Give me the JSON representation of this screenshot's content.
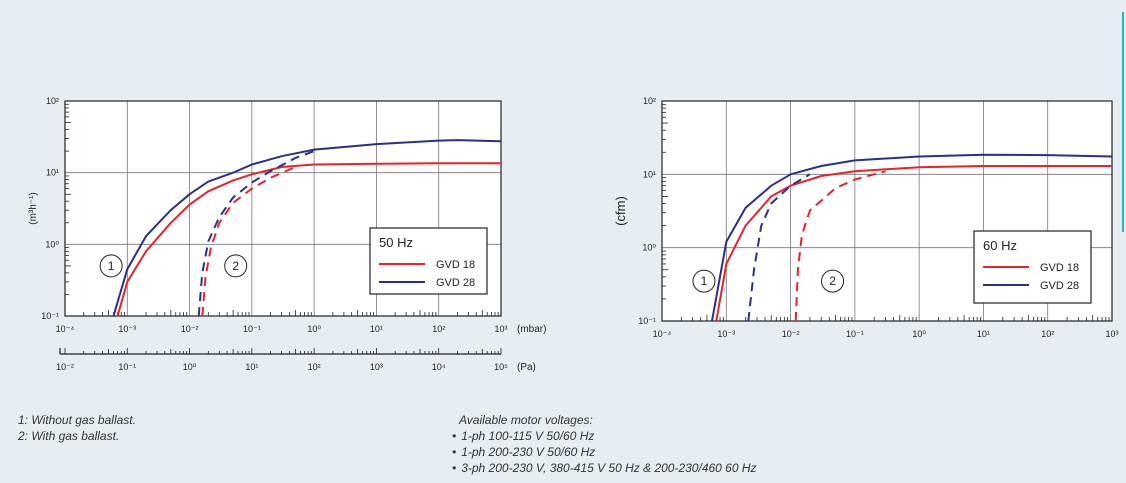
{
  "chart_data": [
    {
      "type": "line",
      "legend_title": "50 Hz",
      "legend_position": "lower-right",
      "ylabel": "(m³h⁻¹)",
      "x_unit": "(mbar)",
      "x2_unit": "(Pa)",
      "x_scale": "log",
      "y_scale": "log",
      "xlim": [
        0.0001,
        1000
      ],
      "ylim": [
        0.1,
        100
      ],
      "grid": true,
      "x_ticks": [
        "10⁻⁴",
        "10⁻³",
        "10⁻²",
        "10⁻¹",
        "10⁰",
        "10¹",
        "10²",
        "10³"
      ],
      "x2_ticks": [
        "10⁻²",
        "10⁻¹",
        "10⁰",
        "10¹",
        "10²",
        "10³",
        "10⁴",
        "10⁵"
      ],
      "y_ticks": [
        "10⁻¹",
        "10⁰",
        "10¹",
        "10²"
      ],
      "markers": [
        {
          "label": "1",
          "x": 0.00055,
          "y": 0.5
        },
        {
          "label": "2",
          "x": 0.055,
          "y": 0.5
        }
      ],
      "series": [
        {
          "name": "GVD 18",
          "color": "#e8232a",
          "style": "solid",
          "points": [
            [
              0.0007,
              0.1
            ],
            [
              0.001,
              0.3
            ],
            [
              0.002,
              0.8
            ],
            [
              0.005,
              2
            ],
            [
              0.01,
              3.6
            ],
            [
              0.02,
              5.5
            ],
            [
              0.05,
              7.8
            ],
            [
              0.1,
              9.5
            ],
            [
              0.3,
              12
            ],
            [
              1,
              13
            ],
            [
              10,
              13.3
            ],
            [
              100,
              13.5
            ],
            [
              1000,
              13.5
            ]
          ]
        },
        {
          "name": "GVD 28",
          "color": "#2b3088",
          "style": "solid",
          "points": [
            [
              0.0006,
              0.1
            ],
            [
              0.001,
              0.45
            ],
            [
              0.002,
              1.3
            ],
            [
              0.005,
              3
            ],
            [
              0.01,
              5
            ],
            [
              0.02,
              7.5
            ],
            [
              0.05,
              10
            ],
            [
              0.1,
              13
            ],
            [
              0.3,
              17
            ],
            [
              1,
              21
            ],
            [
              10,
              25
            ],
            [
              100,
              28
            ],
            [
              200,
              28.5
            ],
            [
              1000,
              27.5
            ]
          ]
        },
        {
          "name": "GVD 18",
          "color": "#e8232a",
          "style": "dashed",
          "points": [
            [
              0.016,
              0.1
            ],
            [
              0.018,
              0.35
            ],
            [
              0.022,
              0.9
            ],
            [
              0.03,
              2
            ],
            [
              0.05,
              3.8
            ],
            [
              0.1,
              6
            ],
            [
              0.2,
              8.5
            ],
            [
              0.5,
              12
            ]
          ]
        },
        {
          "name": "GVD 28",
          "color": "#2b3088",
          "style": "dashed",
          "points": [
            [
              0.014,
              0.1
            ],
            [
              0.016,
              0.4
            ],
            [
              0.02,
              1.1
            ],
            [
              0.03,
              2.4
            ],
            [
              0.05,
              4.5
            ],
            [
              0.1,
              7.3
            ],
            [
              0.2,
              10.5
            ],
            [
              0.5,
              16
            ],
            [
              1,
              20
            ]
          ]
        }
      ]
    },
    {
      "type": "line",
      "legend_title": "60 Hz",
      "legend_position": "lower-right",
      "ylabel": "(cfm)",
      "x_scale": "log",
      "y_scale": "log",
      "xlim": [
        0.0001,
        1000
      ],
      "ylim": [
        0.1,
        100
      ],
      "grid": true,
      "x_ticks": [
        "10⁻⁴",
        "10⁻³",
        "10⁻²",
        "10⁻¹",
        "10⁰",
        "10¹",
        "10²",
        "10³"
      ],
      "y_ticks": [
        "10⁻¹",
        "10⁰",
        "10¹",
        "10²"
      ],
      "markers": [
        {
          "label": "1",
          "x": 0.00045,
          "y": 0.35
        },
        {
          "label": "2",
          "x": 0.045,
          "y": 0.35
        }
      ],
      "series": [
        {
          "name": "GVD 18",
          "color": "#e8232a",
          "style": "solid",
          "points": [
            [
              0.0007,
              0.1
            ],
            [
              0.001,
              0.6
            ],
            [
              0.002,
              2
            ],
            [
              0.005,
              5
            ],
            [
              0.01,
              7
            ],
            [
              0.03,
              9.5
            ],
            [
              0.1,
              11
            ],
            [
              1,
              12.5
            ],
            [
              10,
              13
            ],
            [
              100,
              13
            ],
            [
              1000,
              13
            ]
          ]
        },
        {
          "name": "GVD 28",
          "color": "#2b3088",
          "style": "solid",
          "points": [
            [
              0.0006,
              0.1
            ],
            [
              0.001,
              1.2
            ],
            [
              0.002,
              3.5
            ],
            [
              0.005,
              7
            ],
            [
              0.01,
              10
            ],
            [
              0.03,
              13
            ],
            [
              0.1,
              15.5
            ],
            [
              1,
              17.5
            ],
            [
              10,
              18.5
            ],
            [
              100,
              18.3
            ],
            [
              1000,
              17.5
            ]
          ]
        },
        {
          "name": "GVD 18",
          "color": "#e8232a",
          "style": "dashed",
          "points": [
            [
              0.012,
              0.1
            ],
            [
              0.013,
              0.5
            ],
            [
              0.015,
              1.5
            ],
            [
              0.02,
              3.2
            ],
            [
              0.05,
              6.5
            ],
            [
              0.1,
              8.5
            ],
            [
              0.3,
              11
            ]
          ]
        },
        {
          "name": "GVD 28",
          "color": "#2b3088",
          "style": "dashed",
          "points": [
            [
              0.0022,
              0.1
            ],
            [
              0.0027,
              0.5
            ],
            [
              0.0035,
              2
            ],
            [
              0.005,
              4
            ],
            [
              0.01,
              7
            ],
            [
              0.02,
              10
            ]
          ]
        }
      ]
    }
  ],
  "notes_left": [
    "1: Without gas ballast.",
    "2: With gas ballast."
  ],
  "notes_right": {
    "title": "Available motor voltages:",
    "items": [
      "1-ph 100-115 V 50/60 Hz",
      "1-ph 200-230 V 50/60 Hz",
      "3-ph 200-230 V, 380-415 V 50 Hz & 200-230/460 60 Hz"
    ]
  }
}
